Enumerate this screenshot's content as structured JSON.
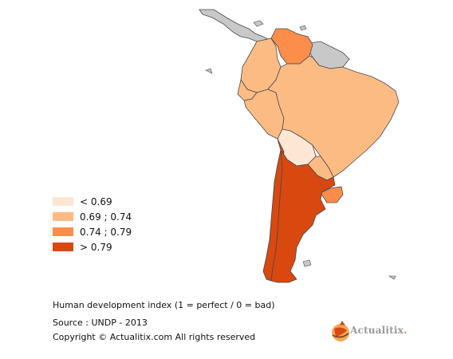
{
  "colors": {
    "lt_0_69": "#fde6d4",
    "r_0_69_0_74": "#fdbb84",
    "r_0_74_0_79": "#fc8d4a",
    "gt_0_79": "#d9480f",
    "no_data": "#c8c8c8",
    "border": "#4a4a4a"
  },
  "legend": {
    "items": [
      {
        "label": "< 0.69",
        "color": "#fde6d4"
      },
      {
        "label": "0.69 ; 0.74",
        "color": "#fdbb84"
      },
      {
        "label": "0.74 ; 0.79",
        "color": "#fc8d4a"
      },
      {
        "label": "> 0.79",
        "color": "#d9480f"
      }
    ]
  },
  "caption": {
    "title": "Human development index (1 = perfect / 0 = bad)",
    "source": "Source : UNDP - 2013",
    "copyright": "Copyright © Actualitix.com All rights reserved"
  },
  "logo": {
    "text": "Actualitix",
    "dot": "."
  }
}
